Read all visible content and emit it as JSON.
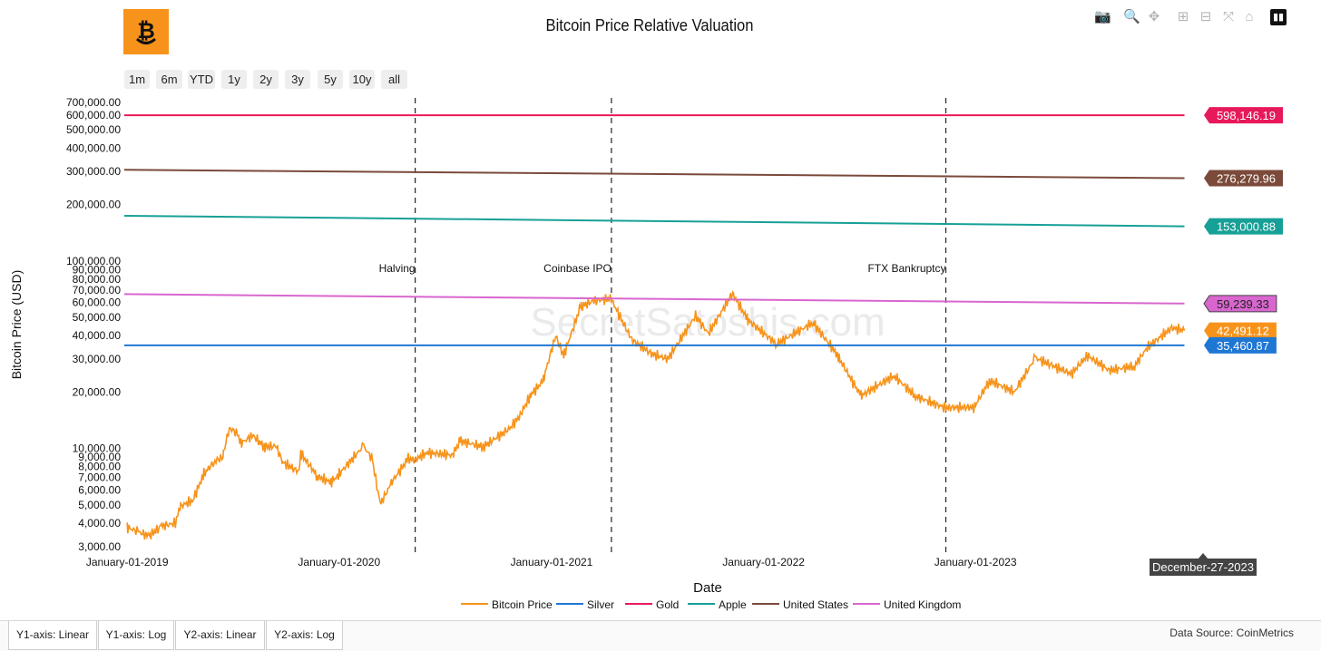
{
  "title": "Bitcoin Price Relative Valuation",
  "toolbar": {
    "range_buttons": [
      "1m",
      "6m",
      "YTD",
      "1y",
      "2y",
      "3y",
      "5y",
      "10y",
      "all"
    ],
    "icons": [
      "camera-icon",
      "zoom-icon",
      "pan-icon",
      "zoom-in-icon",
      "zoom-out-icon",
      "autoscale-icon",
      "reset-axes-icon",
      "plotly-logo-icon"
    ]
  },
  "tabs": [
    "Y1-axis: Linear",
    "Y1-axis: Log",
    "Y2-axis: Linear",
    "Y2-axis: Log"
  ],
  "source": "Data Source: CoinMetrics",
  "watermark": "SecretSatoshis.com",
  "hover_label": "December-27-2023",
  "chart_data": {
    "type": "line",
    "title": "Bitcoin Price Relative Valuation",
    "xlabel": "Date",
    "ylabel": "Bitcoin Price (USD)",
    "y_scale": "log",
    "ylim": [
      2800,
      740000
    ],
    "xlim": [
      "2018-12-27",
      "2024-01-28"
    ],
    "x_ticks": [
      {
        "date": "2019-01-01",
        "label": "January-01-2019"
      },
      {
        "date": "2020-01-01",
        "label": "January-01-2020"
      },
      {
        "date": "2021-01-01",
        "label": "January-01-2021"
      },
      {
        "date": "2022-01-01",
        "label": "January-01-2022"
      },
      {
        "date": "2023-01-01",
        "label": "January-01-2023"
      }
    ],
    "y_ticks": [
      {
        "v": 3000,
        "label": "3,000.00"
      },
      {
        "v": 4000,
        "label": "4,000.00"
      },
      {
        "v": 5000,
        "label": "5,000.00"
      },
      {
        "v": 6000,
        "label": "6,000.00"
      },
      {
        "v": 7000,
        "label": "7,000.00"
      },
      {
        "v": 8000,
        "label": "8,000.00"
      },
      {
        "v": 9000,
        "label": "9,000.00"
      },
      {
        "v": 10000,
        "label": "10,000.00"
      },
      {
        "v": 20000,
        "label": "20,000.00"
      },
      {
        "v": 30000,
        "label": "30,000.00"
      },
      {
        "v": 40000,
        "label": "40,000.00"
      },
      {
        "v": 50000,
        "label": "50,000.00"
      },
      {
        "v": 60000,
        "label": "60,000.00"
      },
      {
        "v": 70000,
        "label": "70,000.00"
      },
      {
        "v": 80000,
        "label": "80,000.00"
      },
      {
        "v": 90000,
        "label": "90,000.00"
      },
      {
        "v": 100000,
        "label": "100,000.00"
      },
      {
        "v": 200000,
        "label": "200,000.00"
      },
      {
        "v": 300000,
        "label": "300,000.00"
      },
      {
        "v": 400000,
        "label": "400,000.00"
      },
      {
        "v": 500000,
        "label": "500,000.00"
      },
      {
        "v": 600000,
        "label": "600,000.00"
      },
      {
        "v": 700000,
        "label": "700,000.00"
      }
    ],
    "events": [
      {
        "date": "2020-05-11",
        "label": "Halving"
      },
      {
        "date": "2021-04-14",
        "label": "Coinbase IPO"
      },
      {
        "date": "2022-11-11",
        "label": "FTX Bankruptcy"
      }
    ],
    "legend_position": "bottom-center",
    "series": [
      {
        "name": "Bitcoin Price",
        "color": "#f7931a",
        "end_label": "42,491.12",
        "points": [
          [
            "2019-01-01",
            3800
          ],
          [
            "2019-01-20",
            3600
          ],
          [
            "2019-02-08",
            3400
          ],
          [
            "2019-03-01",
            3850
          ],
          [
            "2019-03-25",
            4000
          ],
          [
            "2019-04-02",
            4900
          ],
          [
            "2019-04-25",
            5300
          ],
          [
            "2019-05-12",
            7200
          ],
          [
            "2019-05-31",
            8500
          ],
          [
            "2019-06-15",
            9000
          ],
          [
            "2019-06-26",
            12900
          ],
          [
            "2019-07-10",
            12000
          ],
          [
            "2019-07-16",
            10600
          ],
          [
            "2019-08-06",
            11800
          ],
          [
            "2019-08-25",
            10200
          ],
          [
            "2019-09-15",
            10300
          ],
          [
            "2019-09-25",
            8500
          ],
          [
            "2019-10-24",
            7500
          ],
          [
            "2019-10-27",
            9500
          ],
          [
            "2019-11-25",
            7100
          ],
          [
            "2019-12-18",
            6600
          ],
          [
            "2019-12-31",
            7200
          ],
          [
            "2020-02-12",
            10300
          ],
          [
            "2020-02-28",
            8700
          ],
          [
            "2020-03-12",
            5000
          ],
          [
            "2020-03-31",
            6500
          ],
          [
            "2020-04-29",
            8800
          ],
          [
            "2020-05-11",
            8700
          ],
          [
            "2020-06-01",
            9500
          ],
          [
            "2020-07-15",
            9200
          ],
          [
            "2020-07-28",
            11000
          ],
          [
            "2020-09-05",
            10200
          ],
          [
            "2020-10-21",
            12800
          ],
          [
            "2020-11-10",
            15300
          ],
          [
            "2020-11-25",
            19000
          ],
          [
            "2020-12-18",
            23000
          ],
          [
            "2021-01-08",
            40000
          ],
          [
            "2021-01-22",
            31000
          ],
          [
            "2021-02-20",
            57000
          ],
          [
            "2021-03-13",
            61000
          ],
          [
            "2021-04-14",
            63000
          ],
          [
            "2021-05-19",
            38000
          ],
          [
            "2021-06-22",
            32000
          ],
          [
            "2021-07-20",
            30000
          ],
          [
            "2021-09-06",
            51000
          ],
          [
            "2021-09-28",
            41000
          ],
          [
            "2021-11-09",
            67500
          ],
          [
            "2021-12-04",
            49000
          ],
          [
            "2022-01-24",
            36000
          ],
          [
            "2022-03-28",
            47000
          ],
          [
            "2022-05-10",
            31000
          ],
          [
            "2022-06-18",
            19000
          ],
          [
            "2022-08-14",
            24500
          ],
          [
            "2022-09-20",
            19000
          ],
          [
            "2022-11-09",
            16500
          ],
          [
            "2022-12-31",
            16600
          ],
          [
            "2023-01-25",
            23000
          ],
          [
            "2023-03-10",
            20000
          ],
          [
            "2023-04-14",
            30400
          ],
          [
            "2023-06-15",
            25000
          ],
          [
            "2023-07-13",
            31300
          ],
          [
            "2023-08-20",
            26000
          ],
          [
            "2023-10-02",
            27500
          ],
          [
            "2023-10-24",
            34500
          ],
          [
            "2023-12-05",
            44000
          ],
          [
            "2023-12-27",
            42491.12
          ]
        ]
      },
      {
        "name": "Silver",
        "color": "#1f77d4",
        "end_label": "35,460.87",
        "points": [
          [
            "2018-12-27",
            35460.87
          ],
          [
            "2023-12-27",
            35460.87
          ]
        ]
      },
      {
        "name": "Gold",
        "color": "#e8195a",
        "end_label": "598,146.19",
        "points": [
          [
            "2018-12-27",
            598146.19
          ],
          [
            "2023-12-27",
            598146.19
          ]
        ]
      },
      {
        "name": "Apple",
        "color": "#17a096",
        "end_label": "153,000.88",
        "points": [
          [
            "2018-12-27",
            174000
          ],
          [
            "2023-12-27",
            153000.88
          ]
        ]
      },
      {
        "name": "United States",
        "color": "#7b4a3a",
        "end_label": "276,279.96",
        "points": [
          [
            "2018-12-27",
            306000
          ],
          [
            "2023-12-27",
            276279.96
          ]
        ]
      },
      {
        "name": "United Kingdom",
        "color": "#d966cf",
        "end_label": "59,239.33",
        "points": [
          [
            "2018-12-27",
            66500
          ],
          [
            "2023-12-27",
            59239.33
          ]
        ]
      }
    ]
  }
}
